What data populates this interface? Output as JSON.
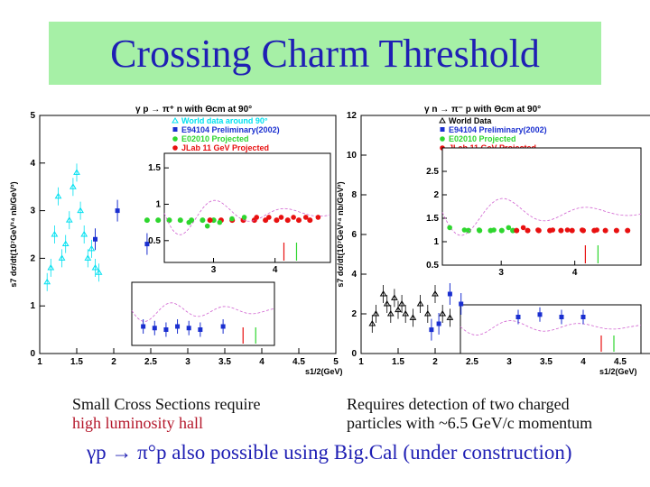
{
  "slide": {
    "title": "Crossing Charm Threshold",
    "caption_left_line1": "Small Cross Sections require",
    "caption_left_line2": "high luminosity hall",
    "caption_right_line1": "Requires detection of two charged",
    "caption_right_line2": "particles with ~6.5 GeV/c momentum",
    "bottom_text": "γp → π°p also possible using Big.Cal (under construction)"
  },
  "colors": {
    "title_bg": "#a6f0a6",
    "title_text": "#1f1fb4",
    "world": "#00e0f0",
    "e94104": "#1a2fd0",
    "e02010": "#2ed62e",
    "jlab11": "#e81010"
  },
  "chart_data": [
    {
      "type": "scatter",
      "title": "γ p → π⁺ n with Θcm at 90°",
      "xlabel": "s1/2(GeV)",
      "ylabel": "s7 dσ/dt(10⁷GeV¹⁴ nb/GeV²)",
      "xlim": [
        1,
        5
      ],
      "ylim": [
        0,
        5
      ],
      "x_ticks": [
        "1",
        "1.5",
        "2",
        "2.5",
        "3",
        "3.5",
        "4",
        "4.5",
        "5"
      ],
      "y_ticks": [
        "0",
        "1",
        "2",
        "3",
        "4",
        "5"
      ],
      "legend": [
        "World data around 90°",
        "E94104 Preliminary(2002)",
        "E02010 Projected",
        "JLab 11 GeV Projected"
      ],
      "legend_position": "top-right",
      "series": [
        {
          "name": "World data around 90°",
          "x": [
            1.1,
            1.15,
            1.2,
            1.25,
            1.3,
            1.35,
            1.4,
            1.45,
            1.5,
            1.55,
            1.6,
            1.65,
            1.7,
            1.75,
            1.8
          ],
          "y": [
            1.5,
            1.8,
            2.5,
            3.3,
            2.0,
            2.3,
            2.8,
            3.5,
            3.8,
            3.0,
            2.5,
            2.0,
            2.2,
            1.8,
            1.7
          ]
        },
        {
          "name": "E94104 Preliminary(2002)",
          "x": [
            1.75,
            2.05,
            2.45
          ],
          "y": [
            2.4,
            3.0,
            2.3
          ]
        },
        {
          "name": "E02010 Projected",
          "x": [
            2.45,
            2.6,
            2.75,
            2.9,
            3.05,
            3.2,
            3.35
          ],
          "y": [
            2.8,
            2.8,
            2.8,
            2.8,
            2.8,
            2.8,
            2.8
          ]
        },
        {
          "name": "JLab 11 GeV Projected",
          "x": [
            3.3,
            3.45,
            3.6,
            3.75,
            3.9,
            4.05,
            4.2,
            4.35,
            4.5,
            4.65
          ],
          "y": [
            2.8,
            2.8,
            2.8,
            2.8,
            2.8,
            2.8,
            2.8,
            2.8,
            2.8,
            2.8
          ]
        }
      ],
      "inset_top": {
        "ylim": [
          0.2,
          1.7
        ],
        "x_ticks": [
          "3",
          "4"
        ],
        "y_ticks": [
          "0.5",
          "1",
          "1.5"
        ],
        "points_x": [
          2.6,
          2.9,
          3.1,
          3.3,
          3.5,
          3.7,
          3.9,
          4.1,
          4.3,
          4.5,
          4.7
        ],
        "points_y": [
          0.75,
          0.7,
          0.75,
          0.8,
          0.82,
          0.82,
          0.82,
          0.82,
          0.82,
          0.82,
          0.82
        ]
      },
      "inset_bottom": {
        "points_x": [
          2.4,
          2.6,
          2.8,
          3.0,
          3.2,
          3.4,
          3.8
        ],
        "points_y": [
          0.6,
          0.55,
          0.5,
          0.6,
          0.55,
          0.5,
          0.6
        ]
      }
    },
    {
      "type": "scatter",
      "title": "γ n → π⁻ p with Θcm at 90°",
      "xlabel": "s1/2(GeV)",
      "ylabel": "s7 dσ/dt(10⁷GeV¹⁴ nb/GeV²)",
      "xlim": [
        1,
        5
      ],
      "ylim": [
        0,
        12
      ],
      "x_ticks": [
        "1",
        "1.5",
        "2",
        "2.5",
        "3",
        "3.5",
        "4",
        "4.5",
        "5"
      ],
      "y_ticks": [
        "0",
        "2",
        "4",
        "6",
        "8",
        "10",
        "12"
      ],
      "legend": [
        "World Data",
        "E94104 Preliminary(2002)",
        "E02010 Projected",
        "JLab 11 GeV Projected"
      ],
      "legend_position": "top-right",
      "series": [
        {
          "name": "World Data",
          "x": [
            1.15,
            1.2,
            1.3,
            1.35,
            1.4,
            1.45,
            1.5,
            1.55,
            1.6,
            1.7,
            1.8,
            1.9,
            2.0,
            2.1,
            2.2
          ],
          "y": [
            1.5,
            2.0,
            3.0,
            2.5,
            2.0,
            2.8,
            2.2,
            2.5,
            2.0,
            1.8,
            2.5,
            2.0,
            3.0,
            2.0,
            1.8
          ]
        },
        {
          "name": "E94104 Preliminary(2002)",
          "x": [
            1.95,
            2.05,
            2.2,
            2.35
          ],
          "y": [
            1.2,
            1.5,
            3.0,
            2.5
          ]
        },
        {
          "name": "E02010 Projected",
          "x": [
            2.45,
            2.6,
            2.75,
            2.9,
            3.05
          ],
          "y": [
            6.2,
            6.2,
            6.2,
            6.2,
            6.2
          ]
        },
        {
          "name": "JLab 11 GeV Projected",
          "x": [
            3.1,
            3.25,
            3.4,
            3.55,
            3.7,
            3.85,
            4.0,
            4.15,
            4.3,
            4.45,
            4.6
          ],
          "y": [
            6.2,
            6.2,
            6.2,
            6.2,
            6.2,
            6.2,
            6.2,
            6.2,
            6.2,
            6.2,
            6.2
          ]
        }
      ],
      "inset_top": {
        "ylim": [
          0.5,
          3.0
        ],
        "x_ticks": [
          "3",
          "4"
        ],
        "y_ticks": [
          "0.5",
          "1",
          "1.5",
          "2",
          "2.5"
        ],
        "points_x": [
          2.3,
          2.5,
          2.7,
          2.9,
          3.1,
          3.3,
          3.5,
          3.7,
          3.9,
          4.1,
          4.3
        ],
        "points_y": [
          1.3,
          1.25,
          1.25,
          1.25,
          1.3,
          1.3,
          1.25,
          1.25,
          1.25,
          1.25,
          1.25
        ]
      },
      "inset_bottom": {
        "points_x": [
          3.0,
          3.3,
          3.6,
          3.9
        ],
        "points_y": [
          1.5,
          1.6,
          1.5,
          1.5
        ]
      }
    }
  ]
}
